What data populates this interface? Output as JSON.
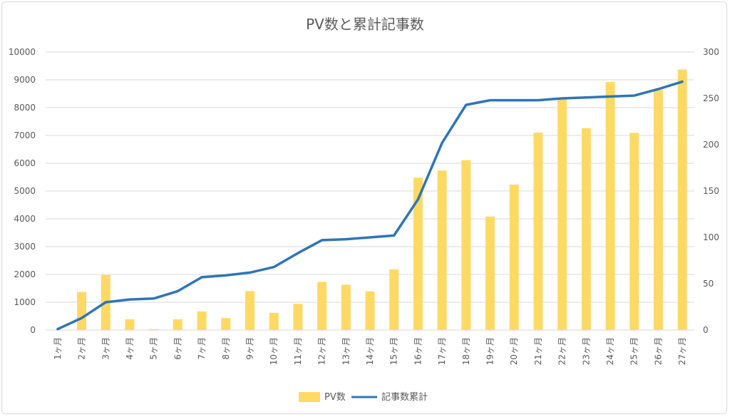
{
  "chart_data": {
    "type": "bar",
    "title": "PV数と累計記事数",
    "categories": [
      "1ヶ月",
      "2ヶ月",
      "3ヶ月",
      "4ヶ月",
      "5ヶ月",
      "6ヶ月",
      "7ヶ月",
      "8ヶ月",
      "9ヶ月",
      "10ヶ月",
      "11ヶ月",
      "12ヶ月",
      "13ヶ月",
      "14ヶ月",
      "15ヶ月",
      "16ヶ月",
      "17ヶ月",
      "18ヶ月",
      "19ヶ月",
      "20ヶ月",
      "21ヶ月",
      "22ヶ月",
      "23ヶ月",
      "24ヶ月",
      "25ヶ月",
      "26ヶ月",
      "27ヶ月"
    ],
    "series": [
      {
        "name": "PV数",
        "type": "bar",
        "axis": "left",
        "color": "#ffd966",
        "values": [
          0,
          1370,
          1980,
          390,
          30,
          390,
          670,
          430,
          1400,
          620,
          940,
          1730,
          1630,
          1390,
          2180,
          5480,
          5740,
          6110,
          4080,
          5230,
          7100,
          8330,
          7260,
          8920,
          7090,
          8640,
          9370
        ]
      },
      {
        "name": "記事数累計",
        "type": "line",
        "axis": "right",
        "color": "#2e75b6",
        "values": [
          1,
          13,
          30,
          33,
          34,
          42,
          57,
          59,
          62,
          68,
          83,
          97,
          98,
          100,
          102,
          141,
          202,
          243,
          248,
          248,
          248,
          250,
          251,
          252,
          253,
          260,
          268
        ]
      }
    ],
    "y_left": {
      "min": 0,
      "max": 10000,
      "ticks": [
        "0",
        "1000",
        "2000",
        "3000",
        "4000",
        "5000",
        "6000",
        "7000",
        "8000",
        "9000",
        "10000"
      ]
    },
    "y_right": {
      "min": 0,
      "max": 300,
      "ticks": [
        "0",
        "50",
        "100",
        "150",
        "200",
        "250",
        "300"
      ]
    },
    "grid": true,
    "legend_position": "bottom"
  }
}
